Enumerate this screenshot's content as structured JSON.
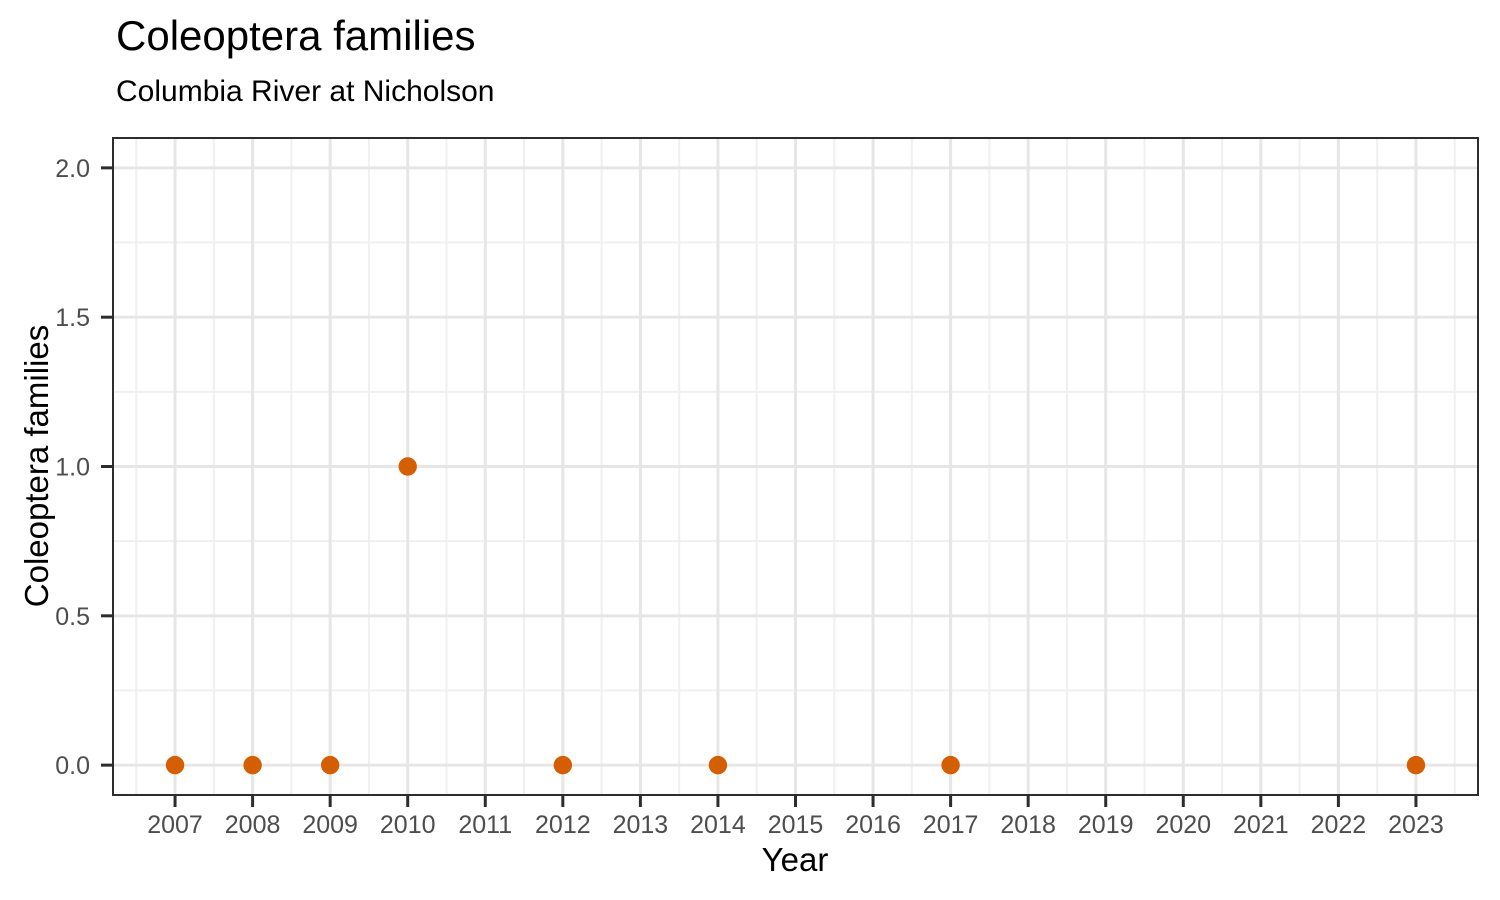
{
  "chart_data": {
    "type": "scatter",
    "title": "Coleoptera families",
    "subtitle": "Columbia River at Nicholson",
    "xlabel": "Year",
    "ylabel": "Coleoptera families",
    "points": [
      {
        "x": 2007,
        "y": 0
      },
      {
        "x": 2008,
        "y": 0
      },
      {
        "x": 2009,
        "y": 0
      },
      {
        "x": 2010,
        "y": 1
      },
      {
        "x": 2012,
        "y": 0
      },
      {
        "x": 2014,
        "y": 0
      },
      {
        "x": 2017,
        "y": 0
      },
      {
        "x": 2023,
        "y": 0
      }
    ],
    "xlim": [
      2006.2,
      2023.8
    ],
    "ylim": [
      -0.1,
      2.1
    ],
    "x_ticks": [
      2007,
      2008,
      2009,
      2010,
      2011,
      2012,
      2013,
      2014,
      2015,
      2016,
      2017,
      2018,
      2019,
      2020,
      2021,
      2022,
      2023
    ],
    "x_tick_labels": [
      "2007",
      "2008",
      "2009",
      "2010",
      "2011",
      "2012",
      "2013",
      "2014",
      "2015",
      "2016",
      "2017",
      "2018",
      "2019",
      "2020",
      "2021",
      "2022",
      "2023"
    ],
    "y_ticks": [
      0,
      0.5,
      1,
      1.5,
      2
    ],
    "y_tick_labels": [
      "0.0",
      "0.5",
      "1.0",
      "1.5",
      "2.0"
    ],
    "grid": "major and minor, on",
    "legend": "none",
    "style": {
      "point_color": "#D55E00",
      "point_radius": 9.2,
      "grid_major_color": "#E6E6E6",
      "grid_minor_color": "#F0F0F0",
      "panel_border_color": "#2D2D2D",
      "tick_color": "#2D2D2D",
      "tick_label_color": "#4D4D4D",
      "title_color": "#000000",
      "panel_background": "#FFFFFF"
    }
  }
}
